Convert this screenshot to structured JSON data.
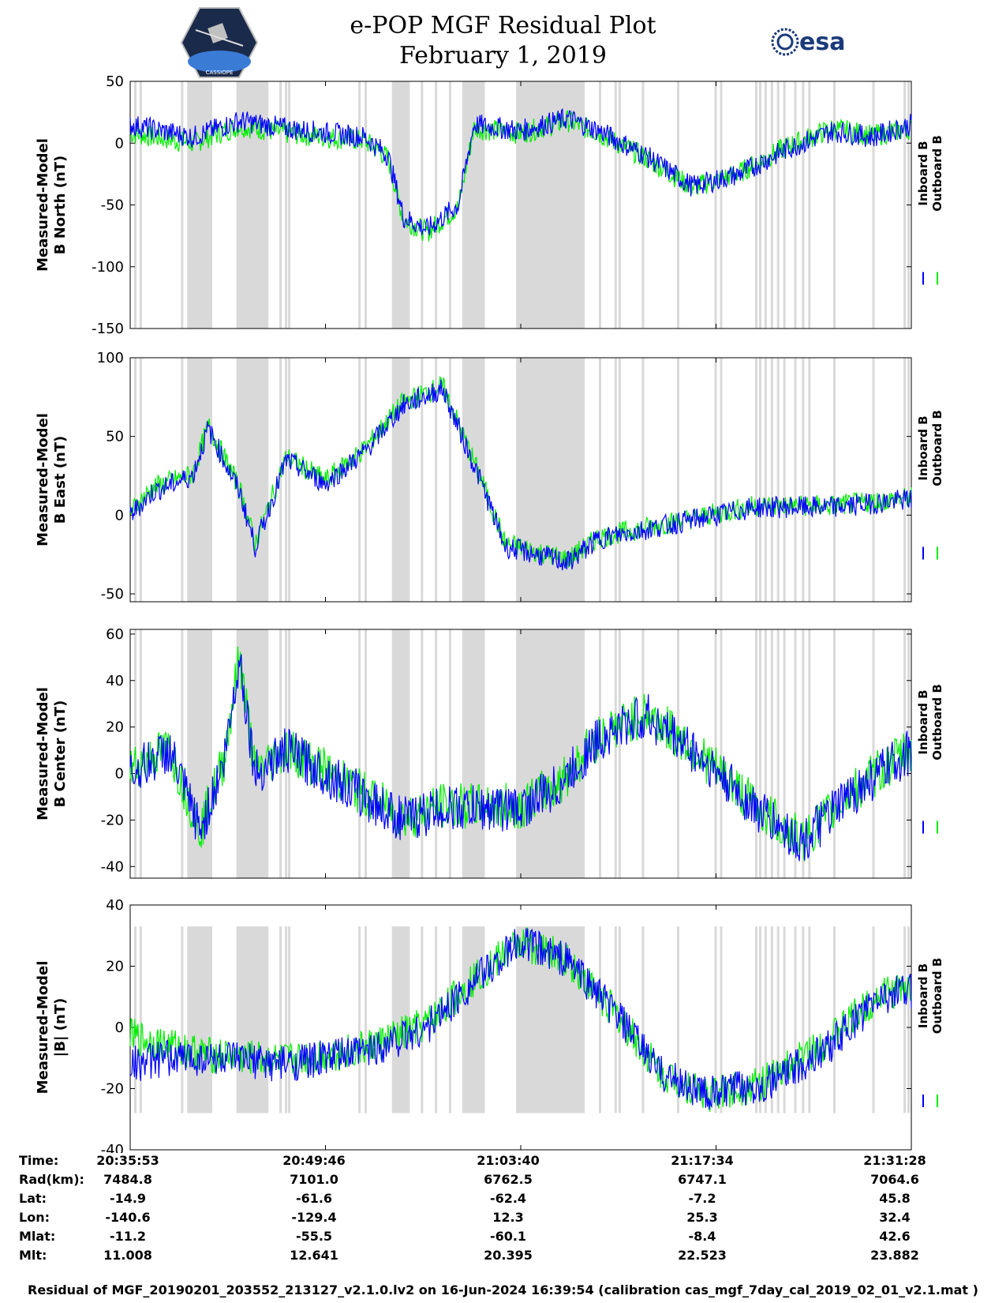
{
  "header": {
    "title_line1": "e-POP MGF Residual Plot",
    "title_line2": "February 1, 2019",
    "logo_left_text": "CASSIOPE",
    "logo_right_text": "esa"
  },
  "colors": {
    "inboard": "#0000ff",
    "outboard": "#00ee00",
    "shade": "#d9d9d9"
  },
  "chart_data": [
    {
      "type": "line",
      "ylabel_line1": "Measured-Model",
      "ylabel_line2": "B North (nT)",
      "ylim": [
        -150,
        50
      ],
      "yticks": [
        50,
        0,
        -50,
        -100,
        -150
      ],
      "legend": [
        "Inboard B",
        "Outboard B"
      ],
      "x": [
        0,
        0.08,
        0.14,
        0.2,
        0.3,
        0.33,
        0.35,
        0.38,
        0.42,
        0.44,
        0.5,
        0.56,
        0.6,
        0.66,
        0.72,
        0.78,
        0.84,
        0.9,
        0.95,
        1.0
      ],
      "series": [
        {
          "name": "Inboard B",
          "values": [
            15,
            5,
            18,
            12,
            5,
            -10,
            -60,
            -70,
            -50,
            15,
            10,
            20,
            10,
            -10,
            -35,
            -25,
            -5,
            10,
            5,
            15
          ]
        },
        {
          "name": "Outboard B",
          "values": [
            8,
            0,
            14,
            8,
            2,
            -12,
            -62,
            -72,
            -52,
            12,
            8,
            18,
            8,
            -12,
            -36,
            -24,
            -3,
            12,
            6,
            12
          ]
        }
      ]
    },
    {
      "type": "line",
      "ylabel_line1": "Measured-Model",
      "ylabel_line2": "B East (nT)",
      "ylim": [
        -55,
        100
      ],
      "yticks": [
        100,
        50,
        0,
        -50
      ],
      "legend": [
        "Inboard B",
        "Outboard B"
      ],
      "x": [
        0,
        0.03,
        0.08,
        0.1,
        0.14,
        0.16,
        0.2,
        0.25,
        0.3,
        0.35,
        0.4,
        0.45,
        0.48,
        0.52,
        0.56,
        0.6,
        0.7,
        0.8,
        0.9,
        1.0
      ],
      "series": [
        {
          "name": "Inboard B",
          "values": [
            0,
            15,
            25,
            55,
            15,
            -20,
            35,
            20,
            40,
            70,
            80,
            20,
            -20,
            -25,
            -30,
            -15,
            -5,
            5,
            5,
            10
          ]
        },
        {
          "name": "Outboard B",
          "values": [
            2,
            18,
            26,
            57,
            17,
            -18,
            37,
            22,
            42,
            72,
            82,
            22,
            -18,
            -23,
            -28,
            -14,
            -4,
            6,
            6,
            11
          ]
        }
      ]
    },
    {
      "type": "line",
      "ylabel_line1": "Measured-Model",
      "ylabel_line2": "B Center (nT)",
      "ylim": [
        -45,
        62
      ],
      "yticks": [
        60,
        40,
        20,
        0,
        -20,
        -40
      ],
      "legend": [
        "Inboard B",
        "Outboard B"
      ],
      "x": [
        0,
        0.05,
        0.09,
        0.12,
        0.14,
        0.16,
        0.2,
        0.25,
        0.3,
        0.35,
        0.4,
        0.5,
        0.55,
        0.6,
        0.66,
        0.72,
        0.8,
        0.86,
        0.92,
        1.0
      ],
      "series": [
        {
          "name": "Inboard B",
          "values": [
            0,
            10,
            -25,
            5,
            50,
            0,
            10,
            0,
            -10,
            -20,
            -15,
            -15,
            -5,
            15,
            25,
            10,
            -15,
            -30,
            -10,
            10
          ]
        },
        {
          "name": "Outboard B",
          "values": [
            2,
            11,
            -24,
            6,
            51,
            1,
            11,
            1,
            -9,
            -19,
            -14,
            -14,
            -4,
            16,
            26,
            11,
            -14,
            -29,
            -9,
            11
          ]
        }
      ]
    },
    {
      "type": "line",
      "ylabel_line1": "Measured-Model",
      "ylabel_line2": "|B| (nT)",
      "ylim": [
        -40,
        40
      ],
      "yticks": [
        40,
        20,
        0,
        -20,
        -40
      ],
      "legend": [
        "Inboard B",
        "Outboard B"
      ],
      "x": [
        0,
        0.05,
        0.1,
        0.2,
        0.3,
        0.38,
        0.44,
        0.5,
        0.56,
        0.62,
        0.68,
        0.74,
        0.78,
        0.82,
        0.86,
        0.9,
        0.96,
        1.0
      ],
      "series": [
        {
          "name": "Inboard B",
          "values": [
            -12,
            -10,
            -10,
            -12,
            -8,
            0,
            15,
            28,
            22,
            5,
            -15,
            -22,
            -20,
            -18,
            -12,
            -5,
            10,
            12
          ]
        },
        {
          "name": "Outboard B",
          "values": [
            -3,
            -6,
            -9,
            -11,
            -7,
            1,
            16,
            28,
            22,
            5,
            -15,
            -22,
            -20,
            -17,
            -10,
            -3,
            11,
            13
          ]
        }
      ]
    }
  ],
  "shaded_intervals": [
    [
      0.073,
      0.105
    ],
    [
      0.136,
      0.177
    ],
    [
      0.335,
      0.358
    ],
    [
      0.425,
      0.454
    ],
    [
      0.494,
      0.582
    ]
  ],
  "info_table": {
    "labels": [
      "Time:",
      "Rad(km):",
      "Lat:",
      "Lon:",
      "Mlat:",
      "Mlt:"
    ],
    "columns": [
      [
        "20:35:53",
        "7484.8",
        "-14.9",
        "-140.6",
        "-11.2",
        "11.008"
      ],
      [
        "20:49:46",
        "7101.0",
        "-61.6",
        "-129.4",
        "-55.5",
        "12.641"
      ],
      [
        "21:03:40",
        "6762.5",
        "-62.4",
        "12.3",
        "-60.1",
        "20.395"
      ],
      [
        "21:17:34",
        "6747.1",
        "-7.2",
        "25.3",
        "-8.4",
        "22.523"
      ],
      [
        "21:31:28",
        "7064.6",
        "45.8",
        "32.4",
        "42.6",
        "23.882"
      ]
    ]
  },
  "footer": "Residual of MGF_20190201_203552_213127_v2.1.0.lv2 on 16-Jun-2024 16:39:54 (calibration cas_mgf_7day_cal_2019_02_01_v2.1.mat )"
}
